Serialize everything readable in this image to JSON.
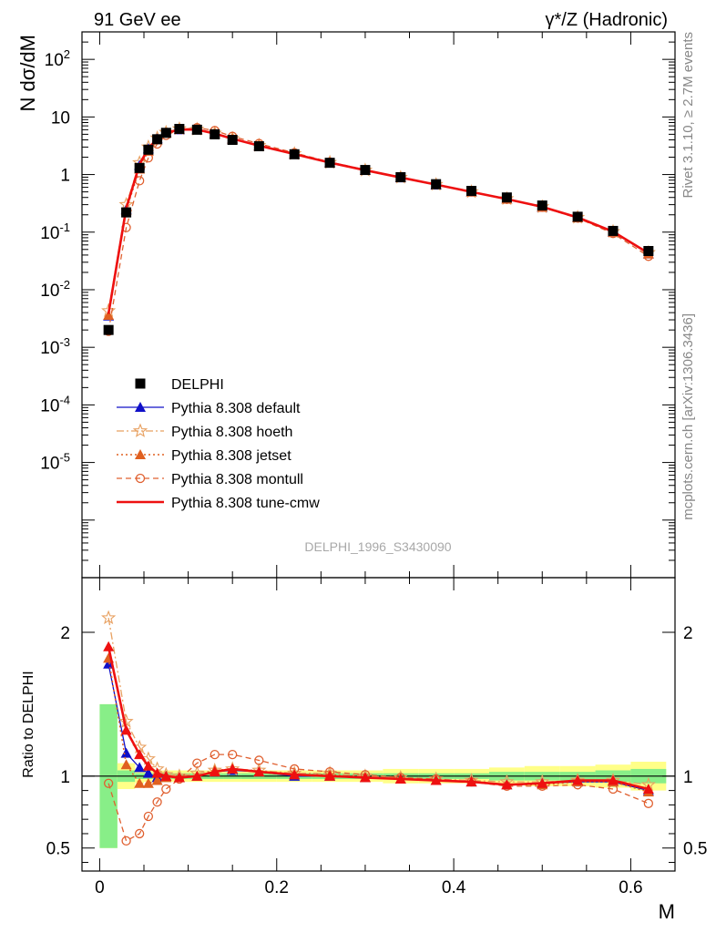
{
  "header": {
    "left_title": "91 GeV ee",
    "right_title": "γ*/Z (Hadronic)"
  },
  "side_labels": {
    "rivet": "Rivet 3.1.10, ≥ 2.7M events",
    "mcplots": "mcplots.cern.ch [arXiv:1306.3436]"
  },
  "colors": {
    "data": "#000000",
    "default": "#1010c8",
    "hoeth": "#e8a060",
    "jetset": "#e06020",
    "montull": "#e06030",
    "cmw": "#ee1010",
    "band_inner": "#88ee88",
    "band_outer": "#ffff88"
  },
  "chart_data": [
    {
      "type": "line",
      "panel": "main",
      "ylabel": "N dσ/dM",
      "xlabel": "M",
      "yscale": "log",
      "ylim": [
        1e-07,
        300
      ],
      "xlim": [
        -0.02,
        0.65
      ],
      "watermark": "DELPHI_1996_S3430090",
      "y_tick_labels": [
        "10^2",
        "10",
        "1",
        "10^-1",
        "10^-2",
        "10^-3",
        "10^-4",
        "10^-5"
      ],
      "legend_placement": "center-left",
      "x": [
        0.01,
        0.03,
        0.045,
        0.055,
        0.065,
        0.075,
        0.09,
        0.11,
        0.13,
        0.15,
        0.18,
        0.22,
        0.26,
        0.3,
        0.34,
        0.38,
        0.42,
        0.46,
        0.5,
        0.54,
        0.58,
        0.62
      ],
      "series": [
        {
          "name": "DELPHI",
          "key": "data",
          "style": "data",
          "values": [
            0.002,
            0.22,
            1.3,
            2.7,
            4.1,
            5.3,
            6.2,
            6.0,
            5.0,
            4.0,
            3.1,
            2.25,
            1.6,
            1.2,
            0.9,
            0.68,
            0.52,
            0.4,
            0.29,
            0.185,
            0.105,
            0.047
          ]
        },
        {
          "name": "Pythia 8.308 default",
          "key": "default",
          "style": "solid",
          "marker": "triangle",
          "values": [
            0.0035,
            0.25,
            1.45,
            2.8,
            4.2,
            5.3,
            6.0,
            6.0,
            5.1,
            4.15,
            3.15,
            2.25,
            1.6,
            1.18,
            0.88,
            0.66,
            0.5,
            0.375,
            0.27,
            0.178,
            0.1,
            0.042
          ]
        },
        {
          "name": "Pythia 8.308 hoeth",
          "key": "hoeth",
          "style": "dashdot",
          "marker": "star",
          "values": [
            0.0043,
            0.3,
            1.6,
            3.0,
            4.3,
            5.4,
            6.2,
            6.1,
            5.2,
            4.2,
            3.2,
            2.3,
            1.62,
            1.19,
            0.89,
            0.67,
            0.5,
            0.38,
            0.275,
            0.18,
            0.102,
            0.044
          ]
        },
        {
          "name": "Pythia 8.308 jetset",
          "key": "jetset",
          "style": "dotted",
          "marker": "triangle",
          "values": [
            0.0036,
            0.24,
            1.25,
            2.55,
            4.0,
            5.25,
            6.1,
            6.0,
            5.1,
            4.15,
            3.15,
            2.27,
            1.61,
            1.19,
            0.89,
            0.67,
            0.5,
            0.375,
            0.272,
            0.178,
            0.1,
            0.042
          ]
        },
        {
          "name": "Pythia 8.308 montull",
          "key": "montull",
          "style": "dashed",
          "marker": "circle",
          "values": [
            0.0019,
            0.12,
            0.78,
            1.95,
            3.4,
            4.8,
            6.05,
            6.5,
            5.8,
            4.6,
            3.45,
            2.38,
            1.65,
            1.21,
            0.9,
            0.67,
            0.5,
            0.37,
            0.27,
            0.175,
            0.095,
            0.038
          ]
        },
        {
          "name": "Pythia 8.308 tune-cmw",
          "key": "cmw",
          "style": "solid-thick",
          "marker": "none",
          "values": [
            0.0038,
            0.26,
            1.5,
            2.85,
            4.2,
            5.3,
            6.05,
            6.05,
            5.15,
            4.2,
            3.17,
            2.27,
            1.61,
            1.19,
            0.89,
            0.67,
            0.5,
            0.375,
            0.275,
            0.18,
            0.102,
            0.043
          ]
        }
      ]
    },
    {
      "type": "line",
      "panel": "ratio",
      "ylabel": "Ratio to DELPHI",
      "xlabel": "M",
      "ylim": [
        0.34,
        2.38
      ],
      "xlim": [
        -0.02,
        0.65
      ],
      "y_ticks": [
        0.5,
        1,
        2
      ],
      "x_ticks": [
        0,
        0.2,
        0.4,
        0.6
      ],
      "x_tick_labels": [
        "0",
        "0.2",
        "0.4",
        "0.6"
      ],
      "y_tick_labels": [
        "0.5",
        "1",
        "2"
      ],
      "band_edges": [
        0.0,
        0.02,
        0.04,
        0.05,
        0.06,
        0.07,
        0.08,
        0.1,
        0.12,
        0.14,
        0.16,
        0.2,
        0.24,
        0.28,
        0.32,
        0.36,
        0.4,
        0.44,
        0.48,
        0.52,
        0.56,
        0.6,
        0.64
      ],
      "band_inner": [
        0.5,
        0.04,
        0.02,
        0.02,
        0.02,
        0.02,
        0.02,
        0.02,
        0.02,
        0.02,
        0.02,
        0.02,
        0.02,
        0.02,
        0.02,
        0.02,
        0.02,
        0.03,
        0.03,
        0.03,
        0.04,
        0.05
      ],
      "band_outer": [
        0.5,
        0.09,
        0.05,
        0.04,
        0.04,
        0.04,
        0.04,
        0.04,
        0.04,
        0.04,
        0.04,
        0.04,
        0.04,
        0.04,
        0.05,
        0.05,
        0.05,
        0.06,
        0.07,
        0.07,
        0.08,
        0.1
      ],
      "x": [
        0.01,
        0.03,
        0.045,
        0.055,
        0.065,
        0.075,
        0.09,
        0.11,
        0.13,
        0.15,
        0.18,
        0.22,
        0.26,
        0.3,
        0.34,
        0.38,
        0.42,
        0.46,
        0.5,
        0.54,
        0.58,
        0.62
      ],
      "series": [
        {
          "name": "Pythia 8.308 default",
          "key": "default",
          "style": "solid",
          "marker": "triangle",
          "values": [
            1.78,
            1.16,
            1.06,
            1.02,
            0.99,
            1.0,
            0.99,
            1.0,
            1.03,
            1.04,
            1.03,
            1.0,
            1.0,
            0.99,
            0.98,
            0.97,
            0.96,
            0.94,
            0.95,
            0.96,
            0.96,
            0.9
          ]
        },
        {
          "name": "Pythia 8.308 hoeth",
          "key": "hoeth",
          "style": "dashdot",
          "marker": "star",
          "values": [
            2.1,
            1.38,
            1.2,
            1.12,
            1.05,
            1.01,
            1.0,
            1.02,
            1.04,
            1.05,
            1.04,
            1.02,
            1.02,
            1.0,
            0.99,
            0.98,
            0.97,
            0.96,
            0.96,
            0.97,
            0.97,
            0.94
          ]
        },
        {
          "name": "Pythia 8.308 jetset",
          "key": "jetset",
          "style": "dotted",
          "marker": "triangle",
          "values": [
            1.82,
            1.08,
            0.95,
            0.95,
            0.97,
            0.99,
            0.99,
            1.0,
            1.04,
            1.05,
            1.03,
            1.01,
            1.01,
            0.99,
            0.98,
            0.97,
            0.96,
            0.94,
            0.94,
            0.96,
            0.96,
            0.89
          ]
        },
        {
          "name": "Pythia 8.308 montull",
          "key": "montull",
          "style": "dashed",
          "marker": "circle",
          "values": [
            0.95,
            0.55,
            0.6,
            0.72,
            0.82,
            0.91,
            0.98,
            1.09,
            1.15,
            1.15,
            1.11,
            1.05,
            1.03,
            1.01,
            0.99,
            0.98,
            0.96,
            0.93,
            0.93,
            0.94,
            0.91,
            0.81
          ]
        },
        {
          "name": "Pythia 8.308 tune-cmw",
          "key": "cmw",
          "style": "solid-thick",
          "marker": "triangle",
          "values": [
            1.9,
            1.32,
            1.15,
            1.07,
            1.02,
            1.0,
            0.99,
            1.0,
            1.03,
            1.05,
            1.03,
            1.01,
            1.0,
            0.99,
            0.98,
            0.97,
            0.96,
            0.94,
            0.95,
            0.97,
            0.97,
            0.91
          ]
        }
      ]
    }
  ]
}
